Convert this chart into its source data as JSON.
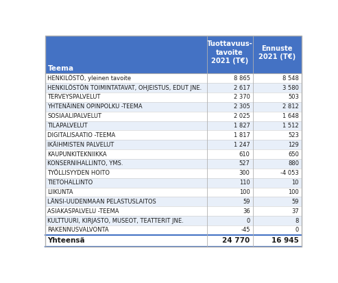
{
  "header_bg": "#4472C4",
  "header_text_color": "#FFFFFF",
  "col1_header": "Teema",
  "col2_header": "Tuottavuus-\ntavoite\n2021 (T€)",
  "col3_header": "Ennuste\n2021 (T€)",
  "rows": [
    [
      "HENKILÖSTÖ, yleinen tavoite",
      "8 865",
      "8 548"
    ],
    [
      "HENKILÖSTÖN TOIMINTATAVAT, OHJEISTUS, EDUT JNE.",
      "2 617",
      "3 580"
    ],
    [
      "TERVEYSPALVELUT",
      "2 370",
      "503"
    ],
    [
      "YHTENÄINEN OPINPOLKU -TEEMA",
      "2 305",
      "2 812"
    ],
    [
      "SOSIAALIPALVELUT",
      "2 025",
      "1 648"
    ],
    [
      "TILAPALVELUT",
      "1 827",
      "1 512"
    ],
    [
      "DIGITALISAATIO -TEEMA",
      "1 817",
      "523"
    ],
    [
      "IKÄIHMISTEN PALVELUT",
      "1 247",
      "129"
    ],
    [
      "KAUPUNKITEKNIIKKA",
      "610",
      "650"
    ],
    [
      "KONSERNIHALLINTO, YMS.",
      "527",
      "880"
    ],
    [
      "TYÖLLISYYDEN HOITO",
      "300",
      "-4 053"
    ],
    [
      "TIETOHALLINTO",
      "110",
      "10"
    ],
    [
      "LIIKUNTA",
      "100",
      "100"
    ],
    [
      "LÄNSI-UUDENMAAN PELASTUSLAITOS",
      "59",
      "59"
    ],
    [
      "ASIAKASPALVELU -TEEMA",
      "36",
      "37"
    ],
    [
      "KULTTUURI, KIRJASTO, MUSEOT, TEATTERIT JNE.",
      "0",
      "8"
    ],
    [
      "RAKENNUSVALVONTA",
      "-45",
      "0"
    ]
  ],
  "footer_label": "Yhteensä",
  "footer_col2": "24 770",
  "footer_col3": "16 945",
  "row_colors": [
    "#FFFFFF",
    "#E8EFF9"
  ],
  "border_color": "#B0B0B0",
  "footer_border_color": "#4472C4"
}
